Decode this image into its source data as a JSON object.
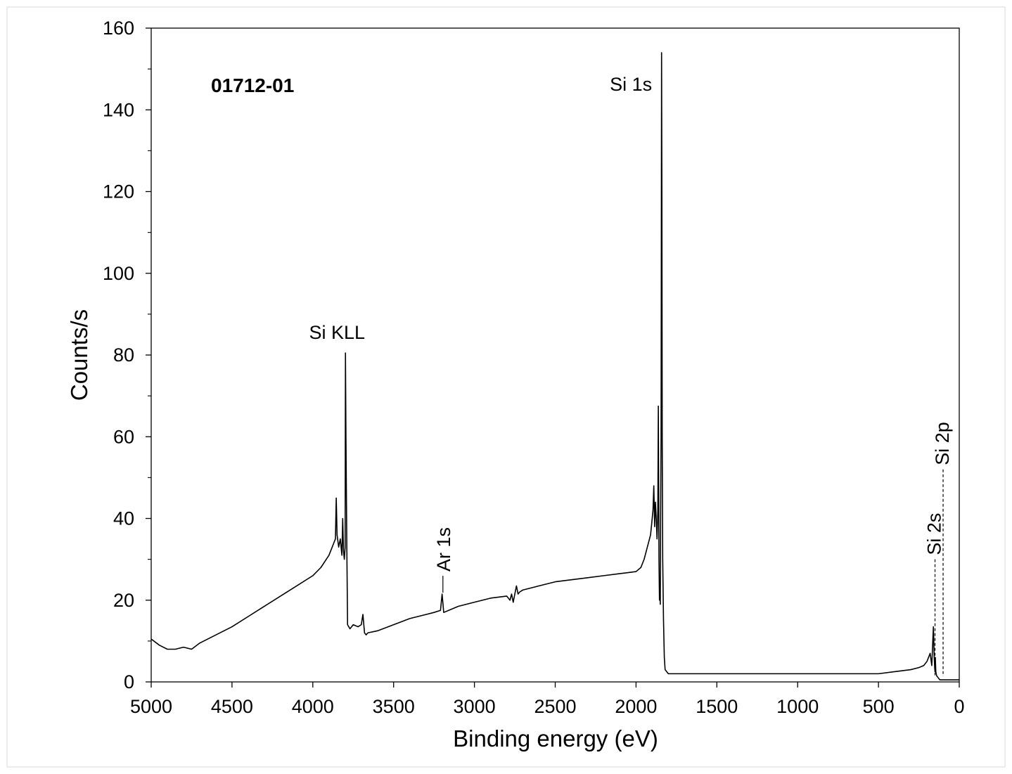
{
  "chart_data": {
    "type": "line",
    "title": "",
    "sample_label": "01712-01",
    "xlabel": "Binding energy  (eV)",
    "ylabel": "Counts/s",
    "xlim": [
      5000,
      0
    ],
    "ylim": [
      0,
      160
    ],
    "x_reversed": true,
    "x_ticks": [
      5000,
      4500,
      4000,
      3500,
      3000,
      2500,
      2000,
      1500,
      1000,
      500,
      0
    ],
    "y_ticks": [
      0,
      20,
      40,
      60,
      80,
      100,
      120,
      140,
      160
    ],
    "y_minor_step": 10,
    "grid": false,
    "legend": "none",
    "line_color": "#000000",
    "series": [
      {
        "x": [
          5000,
          4950,
          4900,
          4850,
          4800,
          4750,
          4700,
          4600,
          4500,
          4400,
          4300,
          4200,
          4100,
          4000,
          3950,
          3900,
          3880,
          3870,
          3860,
          3855,
          3850,
          3840,
          3830,
          3820,
          3815,
          3810,
          3805,
          3800,
          3798,
          3795,
          3790,
          3785,
          3770,
          3750,
          3720,
          3700,
          3690,
          3680,
          3670,
          3660,
          3600,
          3500,
          3400,
          3300,
          3250,
          3210,
          3200,
          3190,
          3100,
          3000,
          2900,
          2800,
          2780,
          2770,
          2760,
          2750,
          2740,
          2730,
          2720,
          2700,
          2600,
          2500,
          2400,
          2300,
          2200,
          2100,
          2000,
          1970,
          1950,
          1930,
          1910,
          1900,
          1895,
          1890,
          1885,
          1880,
          1875,
          1870,
          1865,
          1862,
          1860,
          1858,
          1855,
          1852,
          1850,
          1848,
          1845,
          1842,
          1840,
          1838,
          1835,
          1830,
          1825,
          1820,
          1810,
          1800,
          1700,
          1500,
          1300,
          1100,
          900,
          700,
          500,
          400,
          300,
          250,
          220,
          200,
          180,
          170,
          160,
          155,
          152,
          150,
          148,
          145,
          140,
          130,
          120,
          110,
          100,
          50,
          0
        ],
        "y": [
          10.5,
          9.0,
          8.0,
          8.0,
          8.5,
          8.0,
          9.5,
          11.5,
          13.5,
          16.0,
          18.5,
          21.0,
          23.5,
          26.0,
          28.0,
          31.0,
          33.0,
          34.0,
          35.0,
          45.0,
          36.0,
          33.0,
          35.0,
          31.0,
          40.0,
          32.0,
          30.0,
          33.0,
          80.5,
          60.0,
          35.0,
          14.0,
          13.0,
          14.0,
          13.5,
          14.0,
          16.5,
          12.0,
          11.5,
          12.0,
          12.5,
          14.0,
          15.5,
          16.5,
          17.0,
          17.5,
          21.5,
          17.0,
          18.5,
          19.5,
          20.5,
          21.0,
          20.0,
          21.5,
          19.5,
          21.5,
          23.5,
          21.5,
          22.0,
          22.5,
          23.5,
          24.5,
          25.0,
          25.5,
          26.0,
          26.5,
          27.0,
          28.0,
          30.0,
          33.0,
          36.0,
          40.0,
          42.0,
          48.0,
          38.0,
          44.0,
          40.0,
          35.0,
          42.0,
          67.5,
          48.0,
          30.0,
          20.0,
          25.0,
          19.0,
          40.0,
          60.0,
          154.0,
          120.0,
          60.0,
          30.0,
          15.0,
          6.0,
          3.0,
          2.5,
          2.0,
          2.0,
          2.0,
          2.0,
          2.0,
          2.0,
          2.0,
          2.0,
          2.5,
          3.0,
          3.5,
          4.0,
          5.0,
          7.0,
          4.0,
          13.5,
          6.0,
          3.5,
          2.5,
          6.0,
          2.5,
          1.5,
          1.0,
          0.5,
          0.5,
          0.5,
          0.5,
          0.5
        ]
      }
    ],
    "peak_labels": [
      {
        "text": "Si 1s",
        "x": 1840,
        "y": 154.0,
        "style": "above"
      },
      {
        "text": "Si KLL",
        "x": 3798,
        "y": 80.5,
        "style": "above"
      },
      {
        "text": "Ar 1s",
        "x": 3195,
        "y": 21.5,
        "style": "vertical-solid"
      },
      {
        "text": "Si 2s",
        "x": 150,
        "y": 30,
        "style": "vertical-dashed"
      },
      {
        "text": "Si 2p",
        "x": 100,
        "y": 52,
        "style": "vertical-dashed"
      }
    ]
  }
}
